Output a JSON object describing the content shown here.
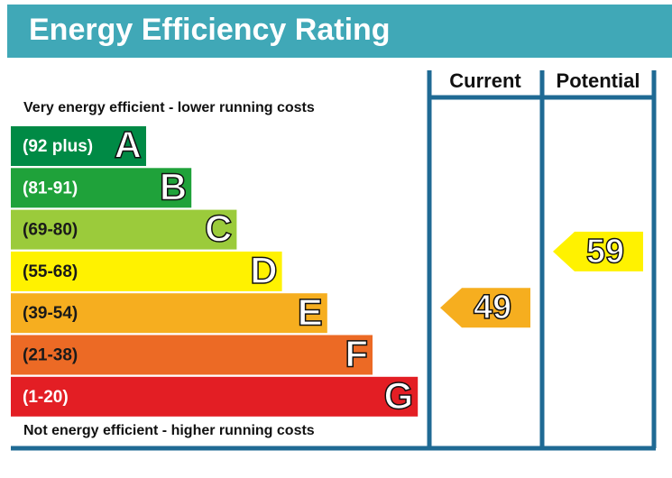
{
  "title": "Energy Efficiency Rating",
  "top_note": "Very energy efficient - lower running costs",
  "bottom_note": "Not energy efficient - higher running costs",
  "columns": [
    "Current",
    "Potential"
  ],
  "bands": [
    {
      "range": "(92 plus)",
      "letter": "A",
      "color": "#008a45",
      "text_color": "#ffffff"
    },
    {
      "range": "(81-91)",
      "letter": "B",
      "color": "#1fa23a",
      "text_color": "#ffffff"
    },
    {
      "range": "(69-80)",
      "letter": "C",
      "color": "#9bcb3b",
      "text_color": "#1a1a1a"
    },
    {
      "range": "(55-68)",
      "letter": "D",
      "color": "#fff200",
      "text_color": "#1a1a1a"
    },
    {
      "range": "(39-54)",
      "letter": "E",
      "color": "#f6ae1f",
      "text_color": "#1a1a1a"
    },
    {
      "range": "(21-38)",
      "letter": "F",
      "color": "#ec6a25",
      "text_color": "#1a1a1a"
    },
    {
      "range": "(1-20)",
      "letter": "G",
      "color": "#e31e24",
      "text_color": "#ffffff"
    }
  ],
  "ratings": [
    {
      "value": 49,
      "band": 4
    },
    {
      "value": 59,
      "band": 3
    }
  ]
}
